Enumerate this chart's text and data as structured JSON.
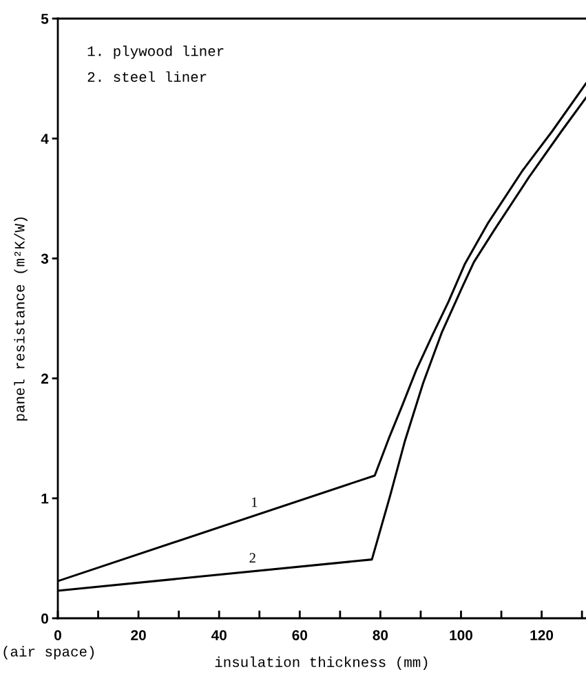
{
  "chart_data": {
    "type": "line",
    "xlabel": "insulation thickness (mm)",
    "ylabel": "panel resistance (m²K/W)",
    "xlim": [
      0,
      131
    ],
    "ylim": [
      0,
      5
    ],
    "xticks": [
      0,
      {
        "value": 10,
        "label": null
      },
      20,
      {
        "value": 30,
        "label": null
      },
      40,
      {
        "value": 50,
        "label": null
      },
      60,
      {
        "value": 70,
        "label": null
      },
      80,
      {
        "value": 90,
        "label": null
      },
      100,
      {
        "value": 110,
        "label": null
      },
      120,
      {
        "value": 130,
        "label": null
      }
    ],
    "yticks": [
      0,
      1,
      2,
      3,
      4,
      5
    ],
    "series": [
      {
        "name": "1",
        "color": "#000000",
        "x": [
          0,
          78.6,
          82.1,
          85.5,
          88.9,
          92.9,
          96.9,
          100.9,
          106.6,
          115.2,
          122.6,
          131
        ],
        "values": [
          0.31,
          1.19,
          1.5,
          1.78,
          2.07,
          2.36,
          2.64,
          2.95,
          3.29,
          3.73,
          4.06,
          4.46
        ]
      },
      {
        "name": "2",
        "color": "#000000",
        "x": [
          0,
          77.9,
          82.4,
          86.1,
          90.6,
          95.2,
          100.3,
          103.2,
          108.3,
          116.9,
          124.9,
          131
        ],
        "values": [
          0.23,
          0.49,
          1.02,
          1.48,
          1.96,
          2.38,
          2.76,
          2.97,
          3.24,
          3.68,
          4.06,
          4.34
        ]
      }
    ],
    "annotations": [
      "1. plywood liner",
      "2. steel liner",
      "(air space)"
    ],
    "grid": false,
    "marker": "none",
    "line_style": "solid"
  }
}
